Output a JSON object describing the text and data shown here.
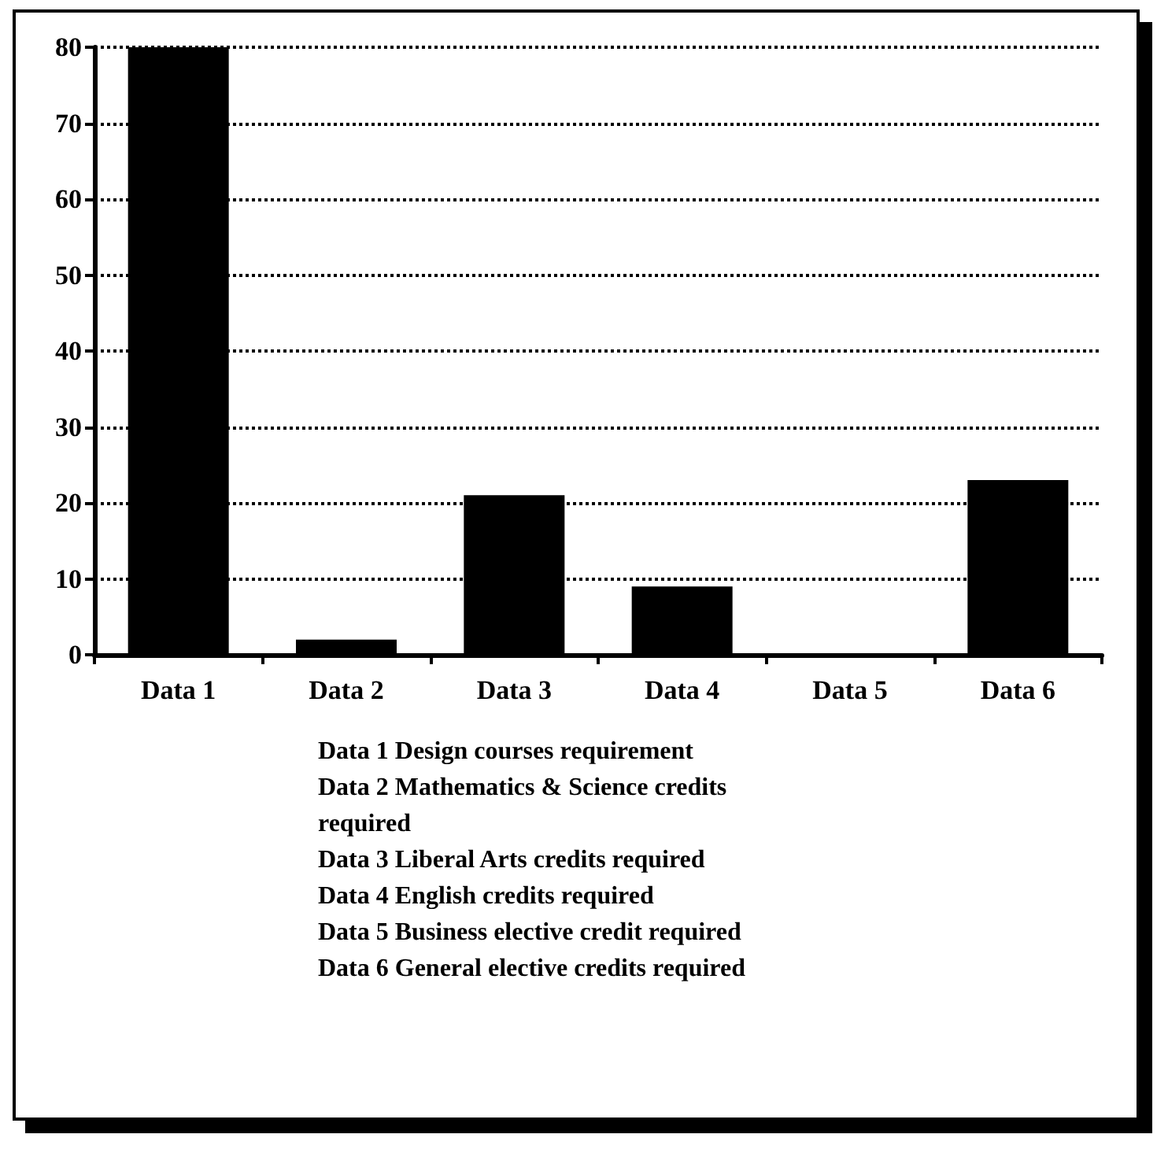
{
  "chart_data": {
    "type": "bar",
    "categories": [
      "Data 1",
      "Data 2",
      "Data 3",
      "Data 4",
      "Data 5",
      "Data 6"
    ],
    "values": [
      80,
      2,
      21,
      9,
      0,
      23
    ],
    "color": "#000000",
    "ylim": [
      0,
      80
    ],
    "yticks": [
      0,
      10,
      20,
      30,
      40,
      50,
      60,
      70,
      80
    ],
    "grid": "y",
    "annotations": [
      "Data 1 Design courses requirement",
      "Data 2 Mathematics & Science credits required",
      "Data 3 Liberal Arts credits required",
      "Data 4 English credits required",
      "Data 5 Business elective credit required",
      "Data 6 General elective credits required"
    ]
  }
}
